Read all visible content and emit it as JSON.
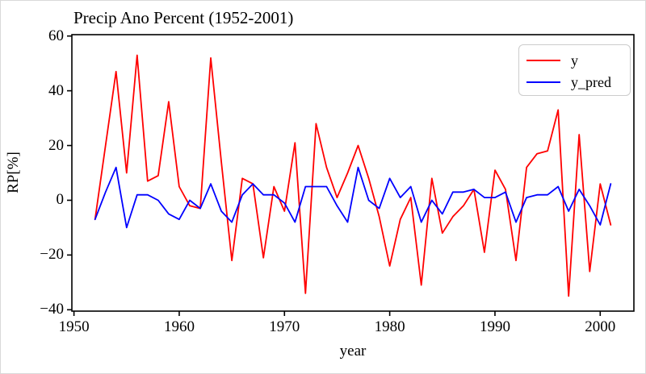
{
  "figure": {
    "title": "Precip Ano Percent (1952-2001)",
    "xlabel": "year",
    "ylabel": "RP[%]"
  },
  "legend": {
    "items": [
      {
        "label": "y",
        "color": "#ff0000"
      },
      {
        "label": "y_pred",
        "color": "#0000ff"
      }
    ]
  },
  "chart_data": {
    "type": "line",
    "title": "Precip Ano Percent (1952-2001)",
    "xlabel": "year",
    "ylabel": "RP[%]",
    "xlim": [
      1949.8,
      2003.2
    ],
    "ylim": [
      -40.5,
      60.5
    ],
    "xticks": [
      1950,
      1960,
      1970,
      1980,
      1990,
      2000
    ],
    "yticks": [
      -40,
      -20,
      0,
      20,
      40,
      60
    ],
    "grid": false,
    "legend_position": "upper right",
    "axis_color": "#000000",
    "x": [
      1952,
      1953,
      1954,
      1955,
      1956,
      1957,
      1958,
      1959,
      1960,
      1961,
      1962,
      1963,
      1964,
      1965,
      1966,
      1967,
      1968,
      1969,
      1970,
      1971,
      1972,
      1973,
      1974,
      1975,
      1976,
      1977,
      1978,
      1979,
      1980,
      1981,
      1982,
      1983,
      1984,
      1985,
      1986,
      1987,
      1988,
      1989,
      1990,
      1991,
      1992,
      1993,
      1994,
      1995,
      1996,
      1997,
      1998,
      1999,
      2000,
      2001
    ],
    "series": [
      {
        "name": "y",
        "color": "#ff0000",
        "values": [
          -7,
          20,
          47,
          10,
          53,
          7,
          9,
          36,
          5,
          -2,
          -3,
          52,
          14,
          -22,
          8,
          6,
          -21,
          5,
          -4,
          21,
          -34,
          28,
          12,
          1,
          10,
          20,
          8,
          -6,
          -24,
          -7,
          1,
          -31,
          8,
          -12,
          -6,
          -2,
          4,
          -19,
          11,
          4,
          -22,
          12,
          17,
          18,
          33,
          -35,
          24,
          -26,
          6,
          -9
        ]
      },
      {
        "name": "y_pred",
        "color": "#0000ff",
        "values": [
          -7,
          3,
          12,
          -10,
          2,
          2,
          0,
          -5,
          -7,
          0,
          -3,
          6,
          -4,
          -8,
          2,
          6,
          2,
          2,
          -1,
          -8,
          5,
          5,
          5,
          -2,
          -8,
          12,
          0,
          -3,
          8,
          1,
          5,
          -8,
          0,
          -5,
          3,
          3,
          4,
          1,
          1,
          3,
          -8,
          1,
          2,
          2,
          5,
          -4,
          4,
          -2,
          -9,
          6
        ]
      }
    ]
  }
}
